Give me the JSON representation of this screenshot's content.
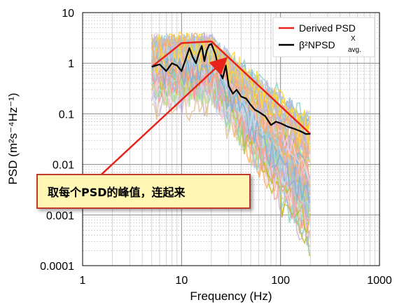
{
  "chart_data": {
    "type": "line",
    "xlabel": "Frequency (Hz)",
    "ylabel": "PSD (m²s⁻⁴Hz⁻¹)",
    "xscale": "log",
    "yscale": "log",
    "xlim": [
      1,
      1000
    ],
    "ylim": [
      0.0001,
      10
    ],
    "x_ticks": [
      "1",
      "10",
      "100",
      "1000"
    ],
    "y_ticks": [
      "10",
      "1",
      "0.1",
      "0.01",
      "0.001",
      "0.0001"
    ],
    "grid": true,
    "legend_position": "top-right",
    "series": [
      {
        "name": "Derived PSD",
        "color": "#e8241a",
        "x": [
          5,
          10,
          20,
          200
        ],
        "y": [
          0.85,
          2.5,
          2.7,
          0.04
        ]
      },
      {
        "name": "β²NPSD^X_avg.",
        "color": "#000000",
        "x": [
          5,
          6,
          7,
          8,
          9,
          10,
          11,
          12,
          13,
          14,
          15,
          16,
          17,
          18,
          19,
          20,
          22,
          24,
          26,
          28,
          30,
          33,
          36,
          40,
          45,
          50,
          55,
          60,
          70,
          80,
          90,
          100,
          120,
          140,
          160,
          180,
          200
        ],
        "y": [
          0.85,
          0.95,
          0.7,
          1.0,
          0.9,
          0.7,
          1.2,
          2.0,
          1.3,
          1.0,
          1.6,
          2.2,
          1.1,
          1.8,
          2.3,
          2.4,
          1.5,
          0.7,
          0.5,
          0.9,
          0.35,
          0.25,
          0.3,
          0.22,
          0.2,
          0.15,
          0.12,
          0.11,
          0.09,
          0.06,
          0.07,
          0.065,
          0.055,
          0.05,
          0.045,
          0.04,
          0.04
        ]
      }
    ],
    "legend": [
      "Derived PSD",
      "β²NPSD"
    ],
    "legend_sup": "X",
    "legend_sub": "avg.",
    "annotation": "取每个PSD的峰值，连起来"
  }
}
